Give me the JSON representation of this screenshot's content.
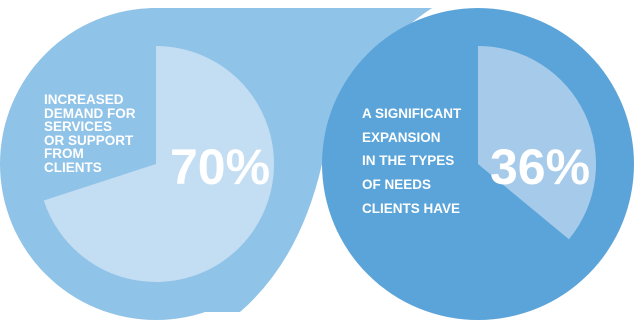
{
  "colors": {
    "left_circle": "#90c3e8",
    "left_slice": "#c3ddf2",
    "right_circle": "#5ba4d9",
    "right_slice": "#a6cbea",
    "text": "#ffffff"
  },
  "chart_data": [
    {
      "type": "pie",
      "label_lines": [
        "INCREASED",
        "DEMAND FOR",
        "SERVICES",
        "OR SUPPORT",
        "FROM",
        "CLIENTS"
      ],
      "value": 70,
      "value_label": "70%"
    },
    {
      "type": "pie",
      "label_lines": [
        "A SIGNIFICANT",
        "EXPANSION",
        "IN THE TYPES",
        "OF NEEDS",
        "CLIENTS HAVE"
      ],
      "value": 36,
      "value_label": "36%"
    }
  ]
}
